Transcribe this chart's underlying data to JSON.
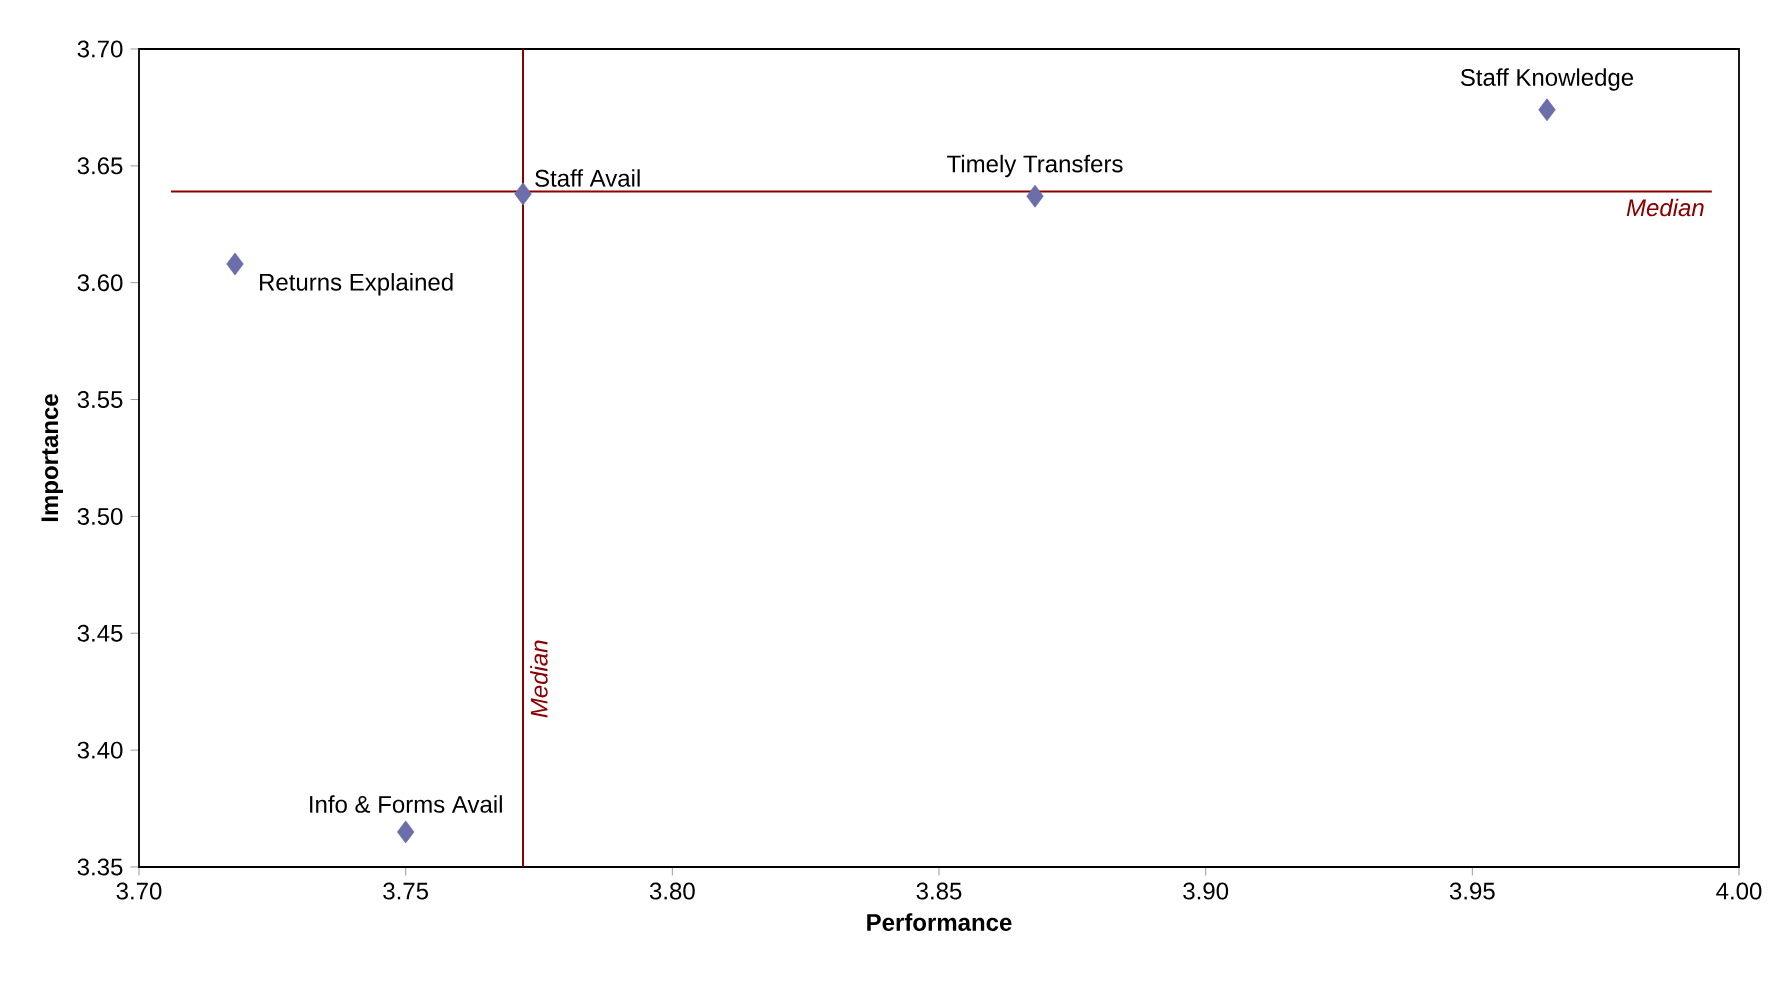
{
  "chart_data": {
    "type": "scatter",
    "xlabel": "Performance",
    "ylabel": "Importance",
    "x": [
      3.964,
      3.772,
      3.868,
      3.718,
      3.75
    ],
    "series": [
      {
        "color": "#6b6ea8",
        "values": [
          3.674,
          3.638,
          3.637,
          3.608,
          3.365
        ]
      }
    ],
    "marker": "diamond",
    "grid": false,
    "xlim": [
      3.7,
      4.0
    ],
    "xticks": [
      {
        "value": 3.7,
        "label": "3.70"
      },
      {
        "value": 3.75,
        "label": "3.75"
      },
      {
        "value": 3.8,
        "label": "3.80"
      },
      {
        "value": 3.85,
        "label": "3.85"
      },
      {
        "value": 3.9,
        "label": "3.90"
      },
      {
        "value": 3.95,
        "label": "3.95"
      },
      {
        "value": 4.0,
        "label": "4.00"
      }
    ],
    "ylim": [
      3.35,
      3.7
    ],
    "yticks": [
      {
        "value": 3.35,
        "label": "3.35"
      },
      {
        "value": 3.4,
        "label": "3.40"
      },
      {
        "value": 3.45,
        "label": "3.45"
      },
      {
        "value": 3.5,
        "label": "3.50"
      },
      {
        "value": 3.55,
        "label": "3.55"
      },
      {
        "value": 3.6,
        "label": "3.60"
      },
      {
        "value": 3.65,
        "label": "3.65"
      },
      {
        "value": 3.7,
        "label": "3.70"
      }
    ],
    "ref_lines": [
      {
        "axis": "x",
        "value": 3.772,
        "label": "*Median*",
        "color": "#8b0000"
      },
      {
        "axis": "y",
        "value": 3.639,
        "label": "*Median*",
        "color": "#8b0000"
      }
    ],
    "annotations": [
      {
        "text": "Staff Knowledge",
        "x": 3.964,
        "y": 3.674
      },
      {
        "text": "Staff Avail",
        "x": 3.772,
        "y": 3.638
      },
      {
        "text": "Timely Transfers",
        "x": 3.868,
        "y": 3.637
      },
      {
        "text": "Returns Explained",
        "x": 3.718,
        "y": 3.608
      },
      {
        "text": "Info & Forms Avail",
        "x": 3.75,
        "y": 3.365
      }
    ]
  }
}
